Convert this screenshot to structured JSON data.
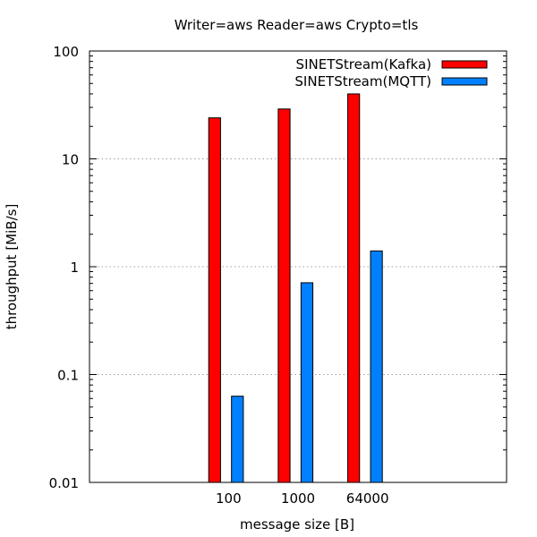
{
  "chart_data": {
    "type": "bar",
    "title": "Writer=aws Reader=aws Crypto=tls",
    "xlabel": "message size [B]",
    "ylabel": "throughput [MiB/s]",
    "yscale": "log",
    "ylim": [
      0.01,
      100
    ],
    "yticks": [
      "0.01",
      "0.1",
      "1",
      "10",
      "100"
    ],
    "grid": "y-major-dotted",
    "legend_position": "top-right",
    "categories": [
      "100",
      "1000",
      "64000"
    ],
    "series": [
      {
        "name": "SINETStream(Kafka)",
        "color": "#ff0000",
        "values": [
          24,
          29,
          40
        ]
      },
      {
        "name": "SINETStream(MQTT)",
        "color": "#0080ff",
        "values": [
          0.063,
          0.71,
          1.4
        ]
      }
    ]
  }
}
